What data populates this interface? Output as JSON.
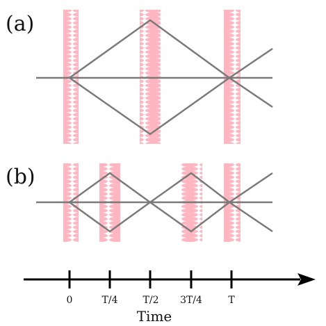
{
  "colors": {
    "pulse": "#ffb6c1",
    "path": "#7a7a7a",
    "axis": "#000000",
    "background": "#ffffff"
  },
  "panel_a": {
    "label": "(a)"
  },
  "panel_b": {
    "label": "(b)"
  },
  "timeline": {
    "ticks": [
      "0",
      "T/4",
      "T/2",
      "3T/4",
      "T"
    ],
    "axis_title": "Time"
  }
}
